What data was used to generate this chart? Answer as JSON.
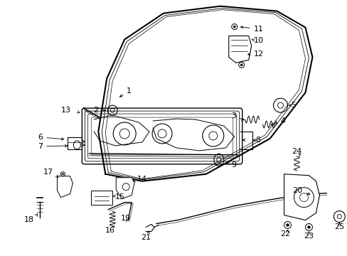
{
  "bg_color": "#ffffff",
  "line_color": "#000000",
  "figsize": [
    4.89,
    3.6
  ],
  "dpi": 100
}
